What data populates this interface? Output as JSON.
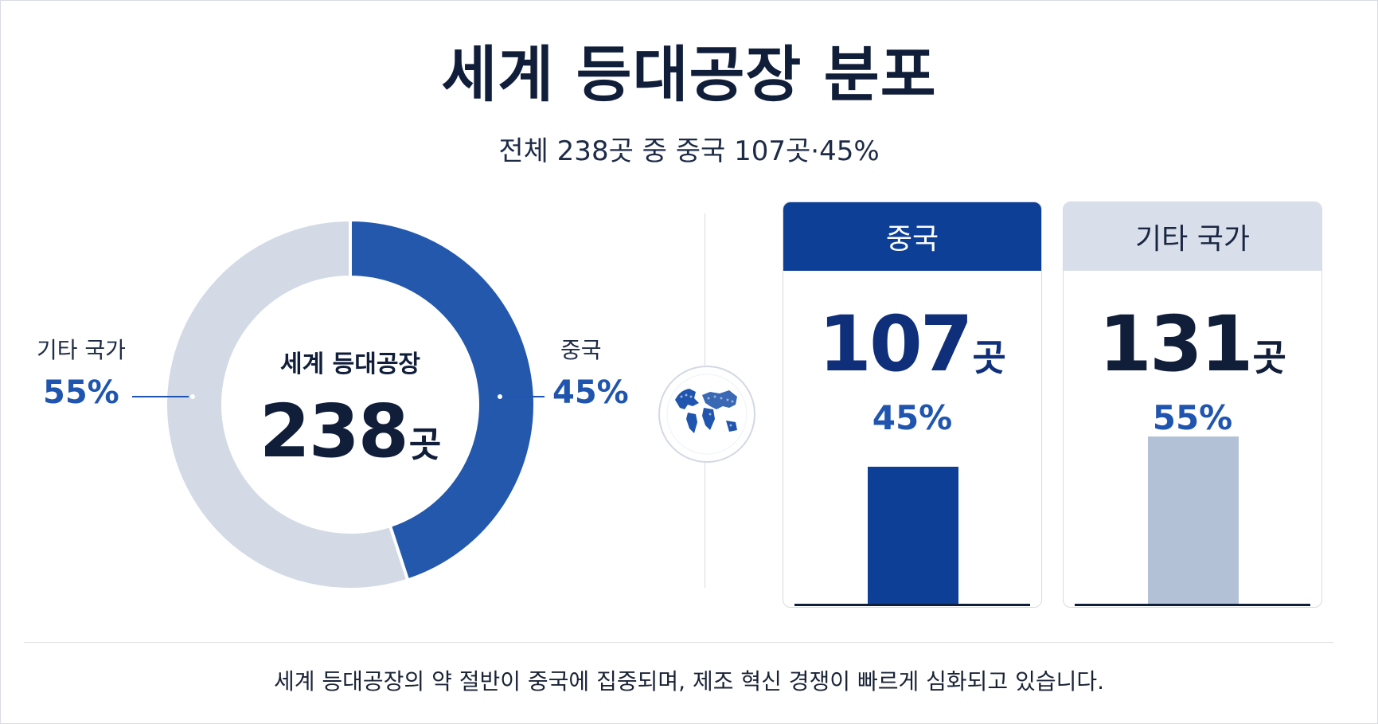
{
  "title": "세계 등대공장 분포",
  "subtitle": "전체 238곳 중 중국 107곳·45%",
  "colors": {
    "china": "#2358ad",
    "china_dark": "#0d3f96",
    "other": "#d3dae6",
    "other_bar": "#b3c1d6",
    "accent_text": "#1f55ae"
  },
  "icons": {
    "globe": "globe-icon"
  },
  "chart_data": [
    {
      "type": "pie",
      "center_label": "세계 등대공장",
      "total": {
        "value": "238",
        "unit": "곳"
      },
      "slices": [
        {
          "label": "중국",
          "value": 107,
          "percent_label": "45%"
        },
        {
          "label": "기타 국가",
          "value": 131,
          "percent_label": "55%"
        }
      ]
    },
    {
      "type": "bar",
      "categories": [
        "중국",
        "기타 국가"
      ],
      "values": [
        107,
        131
      ],
      "value_labels": [
        "107",
        "131"
      ],
      "unit": "곳",
      "percent_labels": [
        "45%",
        "55%"
      ]
    }
  ],
  "footer": "세계 등대공장의 약 절반이 중국에 집중되며, 제조 혁신 경쟁이 빠르게 심화되고 있습니다."
}
